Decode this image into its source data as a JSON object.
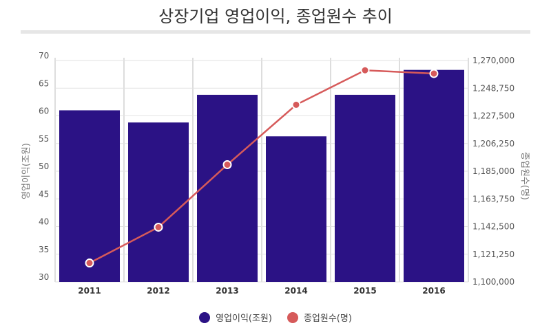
{
  "chart_data": {
    "type": "bar",
    "title": "상장기업 영업이익, 종업원수 추이",
    "categories": [
      "2011",
      "2012",
      "2013",
      "2014",
      "2015",
      "2016"
    ],
    "series": [
      {
        "name": "영업이익(조원)",
        "type": "bar",
        "axis": "left",
        "color": "#2b1285",
        "values": [
          61,
          58.8,
          63.8,
          56.3,
          63.8,
          68.3
        ]
      },
      {
        "name": "종업원수(명)",
        "type": "line",
        "axis": "right",
        "color": "#d65a5a",
        "values": [
          1114500,
          1142000,
          1190000,
          1236000,
          1262500,
          1260000
        ]
      }
    ],
    "ylabel": "영업이익(조원)",
    "y2label": "종업원수(명)",
    "ylim": [
      30,
      70
    ],
    "y2lim": [
      1100000,
      1270000
    ],
    "yticks": [
      "30",
      "35",
      "40",
      "45",
      "50",
      "55",
      "60",
      "65",
      "70"
    ],
    "y2ticks": [
      "1,100,000",
      "1,121,250",
      "1,142,500",
      "1,163,750",
      "1,185,000",
      "1,206,250",
      "1,227,500",
      "1,248,750",
      "1,270,000"
    ],
    "grid": true,
    "legend": "bottom-center"
  }
}
